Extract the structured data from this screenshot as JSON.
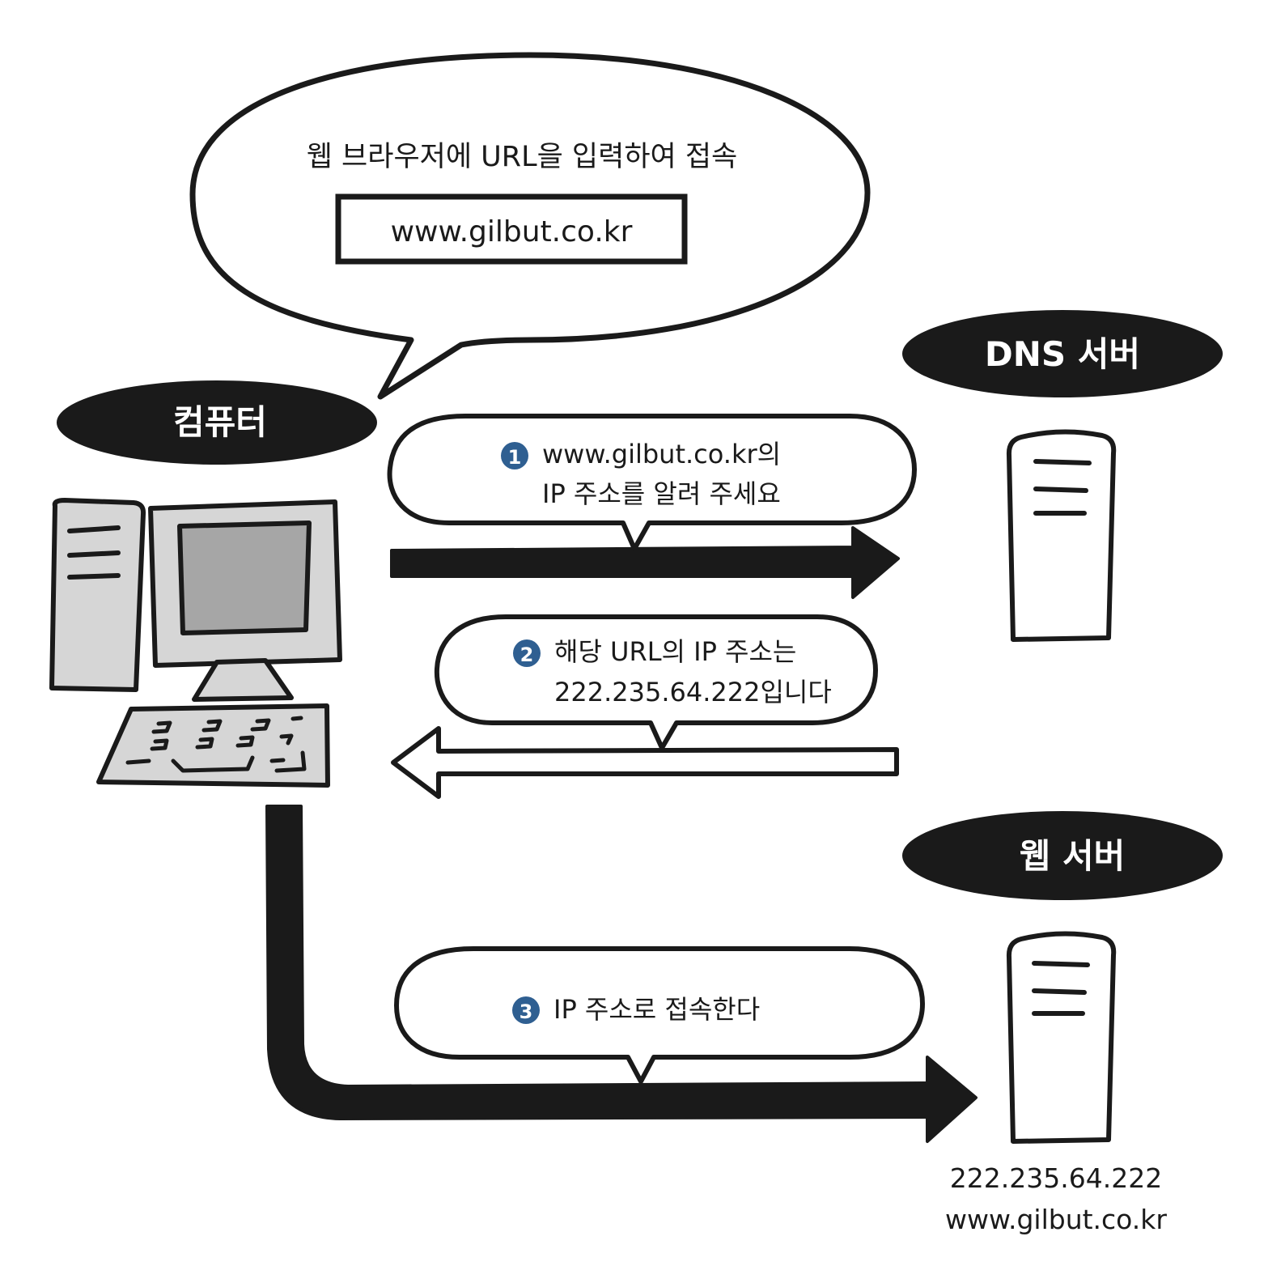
{
  "intro_bubble": {
    "caption": "웹 브라우저에 URL을 입력하여 접속",
    "url_field": "www.gilbut.co.kr"
  },
  "labels": {
    "computer": "컴퓨터",
    "dns_server": "DNS 서버",
    "web_server": "웹 서버"
  },
  "steps": [
    {
      "number": "1",
      "line1": "www.gilbut.co.kr의",
      "line2": "IP 주소를 알려 주세요"
    },
    {
      "number": "2",
      "line1": "해당 URL의 IP 주소는",
      "line2": "222.235.64.222입니다"
    },
    {
      "number": "3",
      "line1": "IP 주소로 접속한다"
    }
  ],
  "web_server_info": {
    "ip": "222.235.64.222",
    "domain": "www.gilbut.co.kr"
  },
  "colors": {
    "ink": "#1a1a1a",
    "badge": "#2f5f91",
    "device_gray": "#d6d6d6",
    "screen_gray": "#a6a6a6"
  }
}
